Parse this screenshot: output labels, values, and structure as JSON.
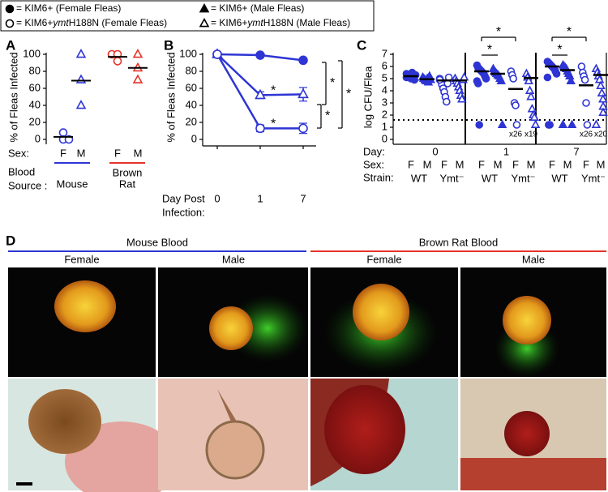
{
  "legend": [
    {
      "marker": "circle-filled",
      "text": [
        "= KIM6+ (Female Fleas)"
      ]
    },
    {
      "marker": "triangle-filled",
      "text": [
        "= KIM6+ (Male Fleas)"
      ]
    },
    {
      "marker": "circle-open",
      "text": [
        "= KIM6+",
        "ymt",
        "H188N (Female Fleas)"
      ]
    },
    {
      "marker": "triangle-open",
      "text": [
        "= KIM6+",
        "ymt",
        "H188N (Male Fleas)"
      ]
    }
  ],
  "chart_data": [
    {
      "type": "dot",
      "panel": "A",
      "ylabel": "% of Fleas Infected",
      "ylim": [
        0,
        100
      ],
      "yticks": [
        0,
        20,
        40,
        60,
        80,
        100
      ],
      "row_labels": [
        "Sex:",
        "Blood",
        "Source :"
      ],
      "groups": [
        {
          "name": [
            "Mouse"
          ],
          "color": "#2e35d4"
        },
        {
          "name": [
            "Brown",
            "Rat"
          ],
          "color": "#e5332a"
        }
      ],
      "series": [
        {
          "group": 0,
          "sex": "F",
          "marker": "circle-open",
          "values": [
            8,
            0,
            0
          ],
          "mean": 3
        },
        {
          "group": 0,
          "sex": "M",
          "marker": "triangle-open",
          "values": [
            100,
            70,
            40
          ],
          "mean": 69
        },
        {
          "group": 1,
          "sex": "F",
          "marker": "circle-open",
          "values": [
            100,
            100,
            92
          ],
          "mean": 97
        },
        {
          "group": 1,
          "sex": "M",
          "marker": "triangle-open",
          "values": [
            100,
            84,
            70
          ],
          "mean": 84
        }
      ]
    },
    {
      "type": "line",
      "panel": "B",
      "ylabel": "% of Fleas Infected",
      "xlabel": [
        "Day Post",
        "Infection:"
      ],
      "categories": [
        "0",
        "1",
        "7"
      ],
      "ylim": [
        0,
        100
      ],
      "yticks": [
        0,
        20,
        40,
        60,
        80,
        100
      ],
      "color": "#2e35d4",
      "series": [
        {
          "marker": "circle-filled",
          "values": [
            100,
            99,
            93
          ],
          "errors": [
            0,
            1,
            1
          ]
        },
        {
          "marker": "triangle-open",
          "values": [
            100,
            52,
            53
          ],
          "errors": [
            0,
            4,
            8
          ],
          "star": "*"
        },
        {
          "marker": "circle-open",
          "values": [
            100,
            13,
            13
          ],
          "errors": [
            0,
            4,
            6
          ],
          "star": "*"
        }
      ],
      "bracket_stars": [
        "*",
        "*",
        "*"
      ]
    },
    {
      "type": "dot",
      "panel": "C",
      "ylabel": "log CFU/Flea",
      "ylim": [
        0,
        7
      ],
      "yticks": [
        0,
        1,
        2,
        3,
        4,
        5,
        6,
        7
      ],
      "color": "#2e35d4",
      "detection_limit": 1.6,
      "row_labels": [
        "Day:",
        "Sex:",
        "Strain:"
      ],
      "days": [
        "0",
        "1",
        "7"
      ],
      "strains": [
        "WT",
        "Ymt⁻",
        "WT",
        "Ymt⁻",
        "WT",
        "Ymt⁻"
      ],
      "groups": [
        {
          "sex": "F",
          "marker": "circle-filled",
          "values": [
            5.4,
            5.3,
            5.2,
            5.1,
            5.0,
            5.5,
            5.2,
            4.9,
            5.3,
            5.1
          ],
          "mean": 5.2
        },
        {
          "sex": "M",
          "marker": "triangle-filled",
          "values": [
            5.1,
            5.0,
            4.9,
            4.8,
            5.0,
            4.7,
            5.2,
            4.9
          ],
          "mean": 4.95
        },
        {
          "sex": "F",
          "marker": "circle-open",
          "values": [
            5.0,
            4.8,
            4.5,
            4.2,
            3.9,
            3.5,
            3.1,
            4.6,
            5.1,
            4.9
          ],
          "mean": 4.85
        },
        {
          "sex": "M",
          "marker": "triangle-open",
          "values": [
            5.0,
            4.8,
            4.6,
            4.3,
            4.0,
            3.6,
            3.3,
            4.9,
            5.1
          ],
          "mean": 4.85
        },
        {
          "sex": "F",
          "marker": "circle-filled",
          "values": [
            6.1,
            5.9,
            5.8,
            5.7,
            5.6,
            5.5,
            5.4,
            5.2,
            5.0,
            4.8,
            4.6,
            1.2
          ],
          "mean": 5.6
        },
        {
          "sex": "M",
          "marker": "triangle-filled",
          "values": [
            5.8,
            5.6,
            5.5,
            5.4,
            5.3,
            5.2,
            5.0,
            4.8,
            1.2
          ],
          "mean": 5.4
        },
        {
          "sex": "F",
          "marker": "circle-open",
          "values": [
            5.6,
            5.3,
            5.0,
            3.0,
            2.8,
            1.2
          ],
          "mean": 4.15,
          "count_label": "x26"
        },
        {
          "sex": "M",
          "marker": "triangle-open",
          "values": [
            5.4,
            5.1,
            4.8,
            4.0,
            3.5,
            2.5,
            2.0,
            1.8,
            1.2
          ],
          "mean": 5.05,
          "count_label": "x19"
        },
        {
          "sex": "F",
          "marker": "circle-filled",
          "values": [
            6.4,
            6.3,
            6.2,
            6.1,
            6.0,
            5.9,
            5.8,
            5.6,
            5.4,
            5.1,
            1.2,
            1.2
          ],
          "mean": 6.0
        },
        {
          "sex": "M",
          "marker": "triangle-filled",
          "values": [
            6.1,
            6.0,
            5.9,
            5.8,
            5.6,
            5.4,
            5.2,
            4.8,
            1.2,
            1.2
          ],
          "mean": 5.7
        },
        {
          "sex": "F",
          "marker": "circle-open",
          "values": [
            6.0,
            5.5,
            5.2,
            4.9,
            3.0,
            1.2
          ],
          "mean": 4.45,
          "count_label": "x26"
        },
        {
          "sex": "M",
          "marker": "triangle-open",
          "values": [
            5.8,
            5.5,
            5.2,
            4.9,
            4.4,
            3.8,
            3.3,
            2.7,
            2.2,
            1.2
          ],
          "mean": 5.3,
          "count_label": "x20"
        }
      ],
      "bracket_stars": [
        "*",
        "*",
        "*",
        "*"
      ]
    }
  ],
  "panel_d": {
    "label": "D",
    "blood": [
      "Mouse Blood",
      "Brown Rat Blood"
    ],
    "columns": [
      "Female",
      "Male",
      "Female",
      "Male"
    ]
  }
}
